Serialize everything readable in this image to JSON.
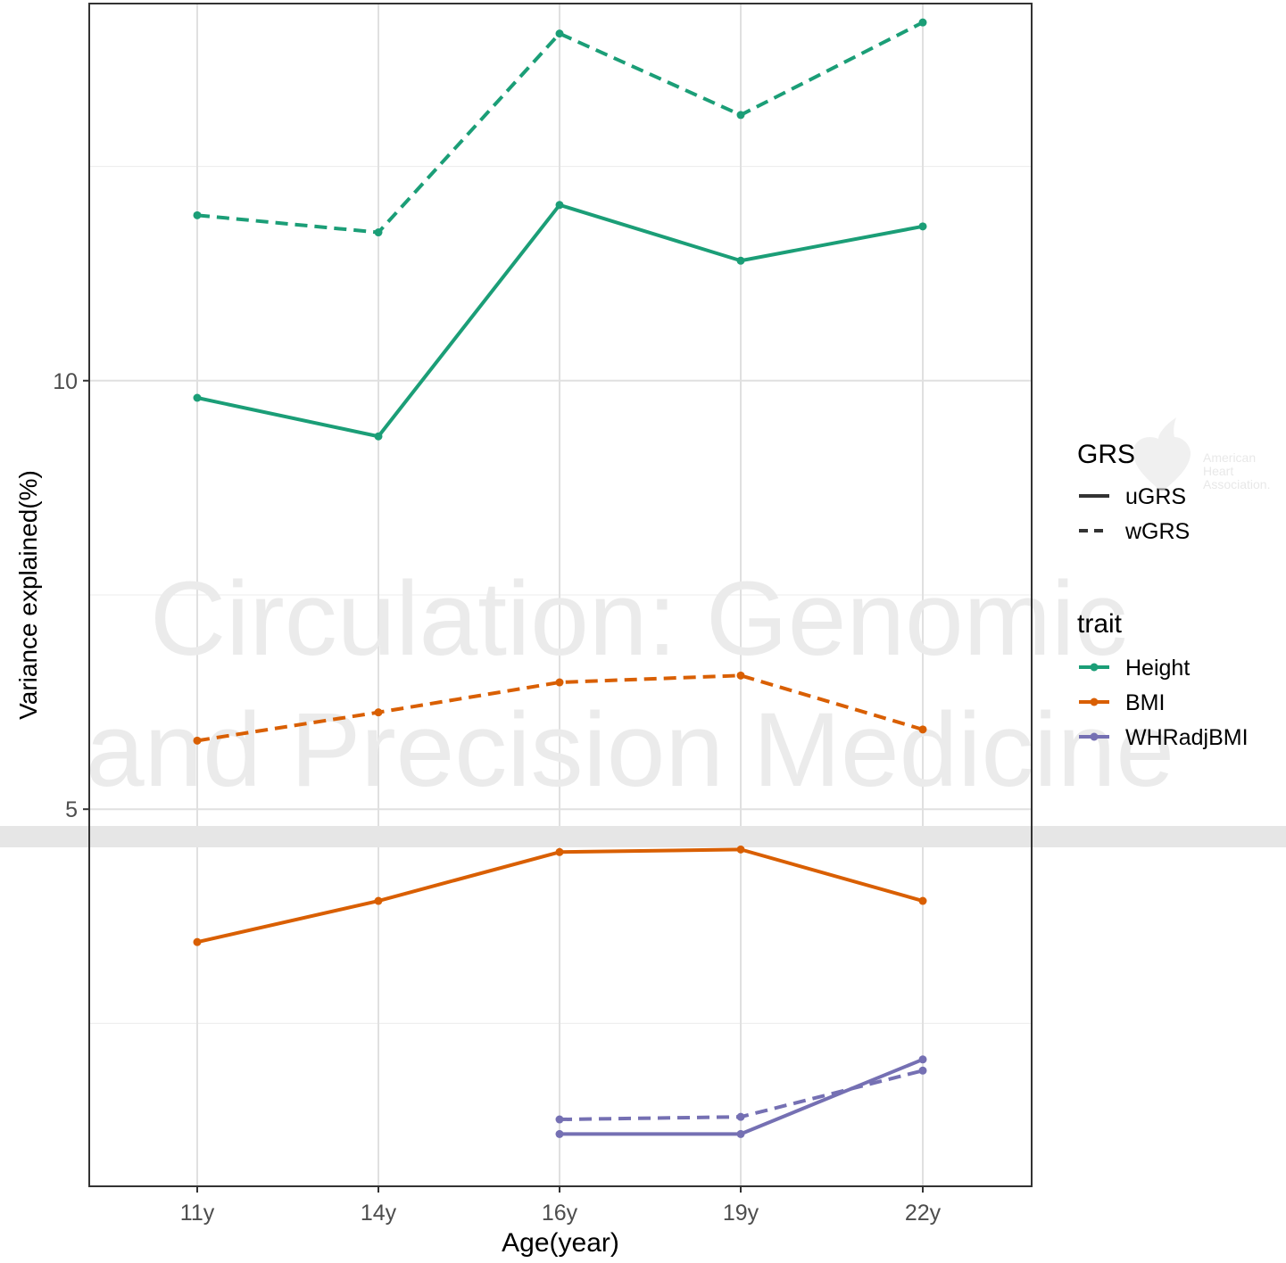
{
  "chart_data": {
    "type": "line",
    "categories": [
      "11y",
      "14y",
      "16y",
      "19y",
      "22y"
    ],
    "xlabel": "Age(year)",
    "ylabel": "Variance explained(%)",
    "ylim": [
      0.6,
      14.4
    ],
    "yticks": [
      5,
      10
    ],
    "ytick_labels": [
      "5",
      "10"
    ],
    "y_minor_gridlines": [
      2.5,
      7.5,
      12.5
    ],
    "grid": true,
    "series": [
      {
        "trait": "Height",
        "grs": "uGRS",
        "color": "#1b9e77",
        "dash": "solid",
        "values": [
          9.8,
          9.35,
          12.05,
          11.4,
          11.8
        ]
      },
      {
        "trait": "Height",
        "grs": "wGRS",
        "color": "#1b9e77",
        "dash": "dashed",
        "values": [
          11.93,
          11.73,
          14.05,
          13.1,
          14.18
        ]
      },
      {
        "trait": "BMI",
        "grs": "uGRS",
        "color": "#d95f02",
        "dash": "solid",
        "values": [
          3.45,
          3.93,
          4.5,
          4.53,
          3.93
        ]
      },
      {
        "trait": "BMI",
        "grs": "wGRS",
        "color": "#d95f02",
        "dash": "dashed",
        "values": [
          5.8,
          6.13,
          6.48,
          6.56,
          5.93
        ]
      },
      {
        "trait": "WHRadjBMI",
        "grs": "uGRS",
        "color": "#7570b3",
        "dash": "solid",
        "values": [
          null,
          null,
          1.21,
          1.21,
          2.08
        ]
      },
      {
        "trait": "WHRadjBMI",
        "grs": "wGRS",
        "color": "#7570b3",
        "dash": "dashed",
        "values": [
          null,
          null,
          1.38,
          1.41,
          1.95
        ]
      }
    ],
    "legend": {
      "placement": "right",
      "grs_title": "GRS",
      "grs_items": [
        {
          "label": "uGRS",
          "dash": "solid"
        },
        {
          "label": "wGRS",
          "dash": "dashed"
        }
      ],
      "trait_title": "trait",
      "trait_items": [
        {
          "label": "Height",
          "color": "#1b9e77"
        },
        {
          "label": "BMI",
          "color": "#d95f02"
        },
        {
          "label": "WHRadjBMI",
          "color": "#7570b3"
        }
      ]
    }
  },
  "watermark": {
    "line1": "Circulation: Genomic",
    "line2": "and Precision Medicine",
    "logo_text": [
      "American",
      "Heart",
      "Association."
    ]
  }
}
